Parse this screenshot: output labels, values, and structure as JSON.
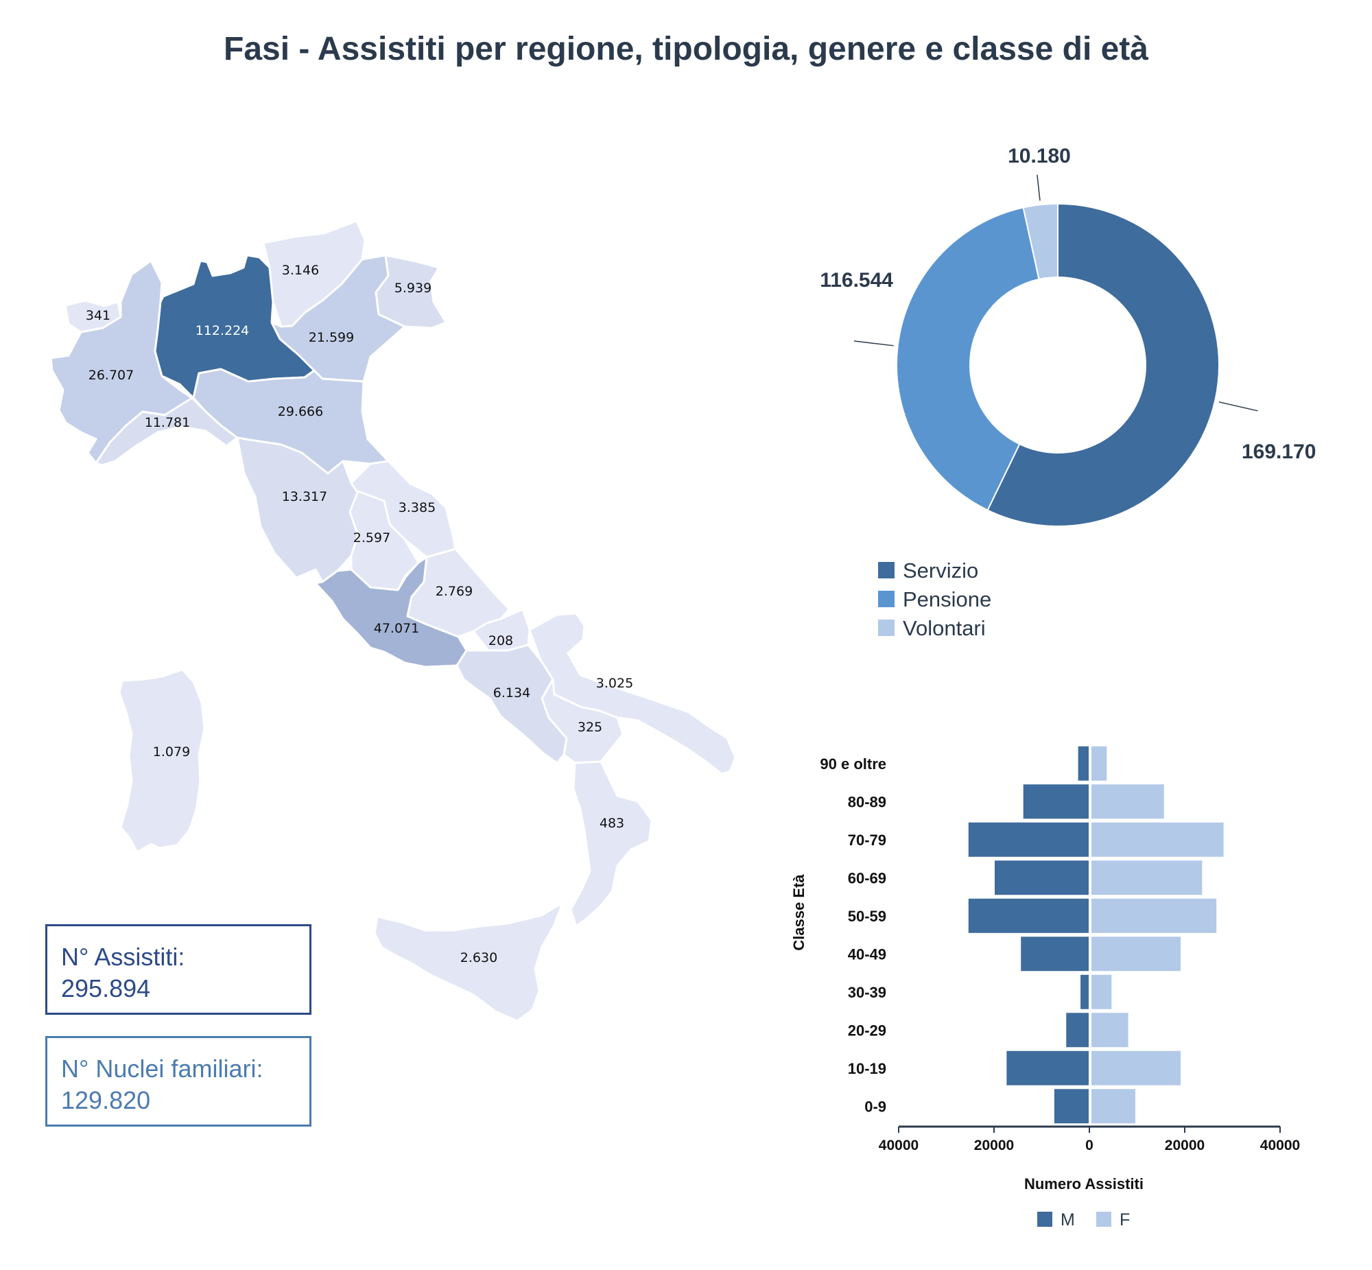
{
  "title": "Fasi - Assistiti per regione, tipologia, genere e classe di età",
  "colors": {
    "servizio": "#3e6c9c",
    "pensione": "#5a95d0",
    "volontari": "#b3c9e8",
    "map_dark": "#3e6c9c",
    "map_mid": "#a2b3d5",
    "map_light1": "#c4d0e9",
    "map_light2": "#d8def0",
    "map_light3": "#e3e6f5",
    "male": "#3e6c9c",
    "female": "#b3c9e8"
  },
  "stats": {
    "assistiti_label": "N° Assistiti:",
    "assistiti_value": "295.894",
    "nuclei_label": "N° Nuclei familiari:",
    "nuclei_value": "129.820"
  },
  "chart_data": [
    {
      "type": "choropleth-map",
      "regions": [
        {
          "name": "Valle d'Aosta",
          "label": "341",
          "value": 341
        },
        {
          "name": "Piemonte",
          "label": "26.707",
          "value": 26707
        },
        {
          "name": "Lombardia",
          "label": "112.224",
          "value": 112224
        },
        {
          "name": "Trentino-Alto Adige",
          "label": "3.146",
          "value": 3146
        },
        {
          "name": "Veneto",
          "label": "21.599",
          "value": 21599
        },
        {
          "name": "Friuli-Venezia Giulia",
          "label": "5.939",
          "value": 5939
        },
        {
          "name": "Liguria",
          "label": "11.781",
          "value": 11781
        },
        {
          "name": "Emilia-Romagna",
          "label": "29.666",
          "value": 29666
        },
        {
          "name": "Toscana",
          "label": "13.317",
          "value": 13317
        },
        {
          "name": "Marche",
          "label": "3.385",
          "value": 3385
        },
        {
          "name": "Umbria",
          "label": "2.597",
          "value": 2597
        },
        {
          "name": "Lazio",
          "label": "47.071",
          "value": 47071
        },
        {
          "name": "Abruzzo",
          "label": "2.769",
          "value": 2769
        },
        {
          "name": "Molise",
          "label": "208",
          "value": 208
        },
        {
          "name": "Campania",
          "label": "6.134",
          "value": 6134
        },
        {
          "name": "Puglia",
          "label": "3.025",
          "value": 3025
        },
        {
          "name": "Basilicata",
          "label": "325",
          "value": 325
        },
        {
          "name": "Calabria",
          "label": "483",
          "value": 483
        },
        {
          "name": "Sicilia",
          "label": "2.630",
          "value": 2630
        },
        {
          "name": "Sardegna",
          "label": "1.079",
          "value": 1079
        }
      ]
    },
    {
      "type": "pie",
      "donut": true,
      "slices": [
        {
          "name": "Servizio",
          "label": "169.170",
          "value": 169170
        },
        {
          "name": "Pensione",
          "label": "116.544",
          "value": 116544
        },
        {
          "name": "Volontari",
          "label": "10.180",
          "value": 10180
        }
      ],
      "legend": "bottom"
    },
    {
      "type": "bar",
      "orientation": "horizontal",
      "subtype": "population-pyramid",
      "categories": [
        "0-9",
        "10-19",
        "20-29",
        "30-39",
        "40-49",
        "50-59",
        "60-69",
        "70-79",
        "80-89",
        "90 e oltre"
      ],
      "series": [
        {
          "name": "M",
          "values": [
            7500,
            17500,
            5000,
            2000,
            14500,
            25500,
            20000,
            25500,
            14000,
            2500
          ]
        },
        {
          "name": "F",
          "values": [
            9500,
            19000,
            8000,
            4500,
            19000,
            26500,
            23500,
            28000,
            15500,
            3500
          ]
        }
      ],
      "xlabel": "Numero Assistiti",
      "ylabel": "Classe Età",
      "xticks": [
        "40000",
        "20000",
        "0",
        "20000",
        "40000"
      ],
      "xlim": [
        -40000,
        40000
      ],
      "grid": false,
      "legend": "bottom"
    }
  ]
}
